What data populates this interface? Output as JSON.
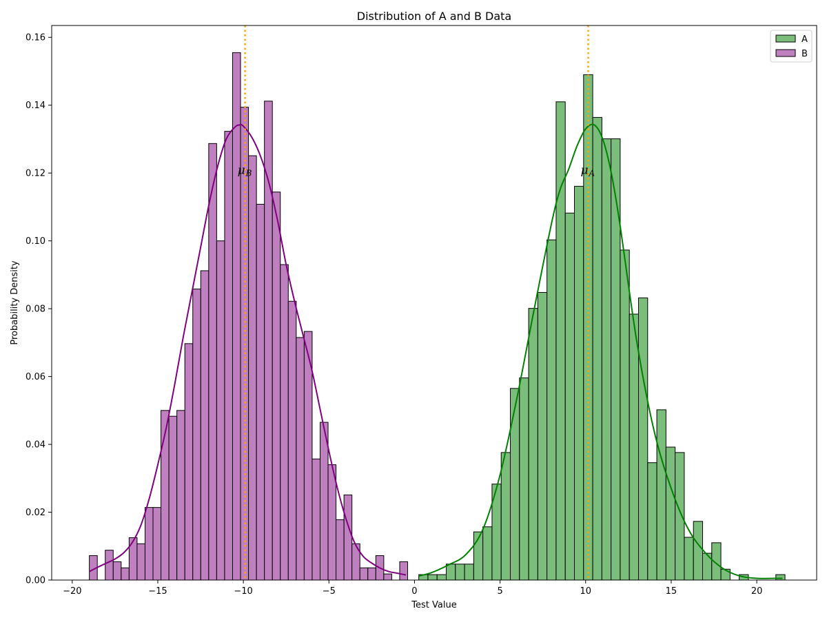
{
  "chart_data": {
    "type": "bar",
    "title": "Distribution of A and B Data",
    "xlabel": "Test Value",
    "ylabel": "Probability Density",
    "xlim": [
      -21.2,
      23.5
    ],
    "ylim": [
      0,
      0.1635
    ],
    "xticks": [
      -20,
      -15,
      -10,
      -5,
      0,
      5,
      10,
      15,
      20
    ],
    "xtick_labels": [
      "−20",
      "−15",
      "−10",
      "−5",
      "0",
      "5",
      "10",
      "15",
      "20"
    ],
    "yticks": [
      0,
      0.02,
      0.04,
      0.06,
      0.08,
      0.1,
      0.12,
      0.14,
      0.16
    ],
    "ytick_labels": [
      "0.00",
      "0.02",
      "0.04",
      "0.06",
      "0.08",
      "0.10",
      "0.12",
      "0.14",
      "0.16"
    ],
    "grid": false,
    "legend_position": "top-right",
    "colors": {
      "A_fill": "#7bbd7b",
      "A_line": "#008000",
      "B_fill": "#bf80bf",
      "B_line": "#800080",
      "mean_line": "#ffa500",
      "edge": "#000000"
    },
    "series": [
      {
        "name": "B",
        "bin_start": -19.0,
        "bin_width": 0.465,
        "values": [
          0.0072,
          0,
          0.0088,
          0.0054,
          0.0036,
          0.0125,
          0.0107,
          0.0214,
          0.0214,
          0.05,
          0.0483,
          0.05,
          0.0697,
          0.0858,
          0.0912,
          0.1287,
          0.1,
          0.1323,
          0.1555,
          0.1394,
          0.1251,
          0.1108,
          0.1412,
          0.1144,
          0.093,
          0.0822,
          0.0715,
          0.0733,
          0.0357,
          0.0465,
          0.034,
          0.0178,
          0.0251,
          0.0107,
          0.0036,
          0.0036,
          0.0072,
          0.0018,
          0,
          0.0054
        ],
        "kde_x": [
          -19,
          -18.5,
          -18,
          -17.5,
          -17,
          -16.5,
          -16,
          -15.5,
          -15,
          -14.5,
          -14,
          -13.5,
          -13,
          -12.5,
          -12,
          -11.5,
          -11,
          -10.5,
          -10.2,
          -10,
          -9.5,
          -9,
          -8.5,
          -8,
          -7.5,
          -7,
          -6.5,
          -6,
          -5.5,
          -5,
          -4.5,
          -4,
          -3.5,
          -3,
          -2.5,
          -2,
          -1.5,
          -1,
          -0.5
        ],
        "kde_y": [
          0.0025,
          0.0038,
          0.005,
          0.0062,
          0.008,
          0.011,
          0.016,
          0.024,
          0.034,
          0.045,
          0.058,
          0.072,
          0.085,
          0.098,
          0.111,
          0.122,
          0.13,
          0.1335,
          0.1342,
          0.1338,
          0.1305,
          0.125,
          0.117,
          0.106,
          0.093,
          0.082,
          0.072,
          0.062,
          0.05,
          0.038,
          0.027,
          0.018,
          0.011,
          0.007,
          0.005,
          0.0035,
          0.0025,
          0.002,
          0.0015
        ],
        "mean": -9.9,
        "mean_label": "μ",
        "mean_label_sub": "B",
        "mean_label_y": 0.121
      },
      {
        "name": "A",
        "bin_start": 0.25,
        "bin_width": 0.535,
        "values": [
          0.0016,
          0.0016,
          0.0016,
          0.0047,
          0.0047,
          0.0047,
          0.0142,
          0.0157,
          0.0283,
          0.0376,
          0.0565,
          0.0596,
          0.0801,
          0.0848,
          0.1003,
          0.141,
          0.1082,
          0.1161,
          0.149,
          0.1364,
          0.1301,
          0.1301,
          0.0973,
          0.0784,
          0.0832,
          0.0346,
          0.0502,
          0.0392,
          0.0376,
          0.0126,
          0.0173,
          0.0079,
          0.011,
          0.0032,
          0,
          0.0016,
          0,
          0,
          0,
          0.0016
        ],
        "kde_x": [
          0.25,
          1,
          2,
          3,
          4,
          5,
          6,
          7,
          8,
          8.5,
          9,
          9.5,
          10,
          10.5,
          11,
          11.5,
          12,
          13,
          14,
          15,
          16,
          17,
          18,
          19,
          20,
          21,
          21.5
        ],
        "kde_y": [
          0.0012,
          0.0022,
          0.0045,
          0.0075,
          0.015,
          0.031,
          0.054,
          0.08,
          0.105,
          0.115,
          0.121,
          0.128,
          0.133,
          0.1342,
          0.13,
          0.12,
          0.105,
          0.07,
          0.044,
          0.027,
          0.015,
          0.008,
          0.0035,
          0.0012,
          0.0005,
          0.0005,
          0.0005
        ],
        "mean": 10.15,
        "mean_label": "μ",
        "mean_label_sub": "A",
        "mean_label_y": 0.121
      }
    ]
  }
}
